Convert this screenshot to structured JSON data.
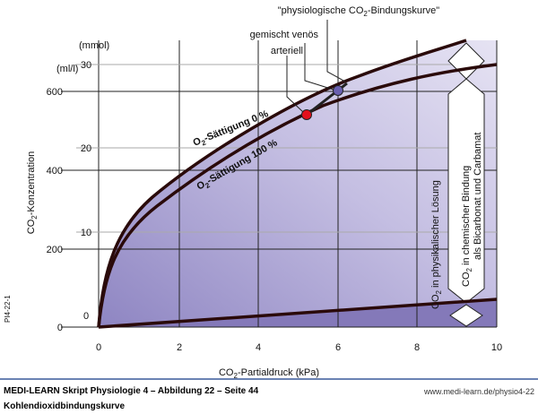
{
  "chart_title": "\"physiologische CO2-Bindungskurve\"",
  "title_parts": {
    "a": "\"physiologische CO",
    "sub": "2",
    "b": "-Bindungskurve\""
  },
  "labels": {
    "mixed_venous": "gemischt venös",
    "arterial": "arteriell",
    "sat0": {
      "a": "O",
      "sub": "2",
      "b": "-Sättigung 0 %"
    },
    "sat100": {
      "a": "O",
      "sub": "2",
      "b": "-Sättigung 100 %"
    },
    "chem": {
      "a": "CO",
      "sub": "2",
      "b": " in chemischer Bindung",
      "line2": "als Bicarbonat und Carbamat"
    },
    "phys": {
      "a": "CO",
      "sub": "2",
      "b": " in physikalischer Lösung"
    },
    "figure_id": "PI4-22-1"
  },
  "axes": {
    "x_label": {
      "a": "CO",
      "sub": "2",
      "b": "-Partialdruck (kPa)"
    },
    "y_label": {
      "a": "CO",
      "sub": "2",
      "b": "-Konzentration"
    },
    "y_unit_mmol": "(mmol)",
    "y_unit_mll": "(ml/l)",
    "x_ticks": [
      "0",
      "2",
      "4",
      "6",
      "8",
      "10"
    ],
    "y_ticks_mll": [
      "0",
      "200",
      "400",
      "600"
    ],
    "y_ticks_mmol": [
      "10",
      "20",
      "30"
    ]
  },
  "footer": {
    "source": "MEDI-LEARN Skript Physiologie 4 – Abbildung 22 – Seite 44",
    "url": "www.medi-learn.de/physio4-22",
    "caption": "Kohlendioxidbindungskurve"
  },
  "colors": {
    "curve": "#2a0a0a",
    "fill": "#b9b2dc",
    "dark_fill": "#8479b9",
    "arterial": "#e3101c",
    "venous": "#6a60b0",
    "rule": "#3a5a9a"
  }
}
